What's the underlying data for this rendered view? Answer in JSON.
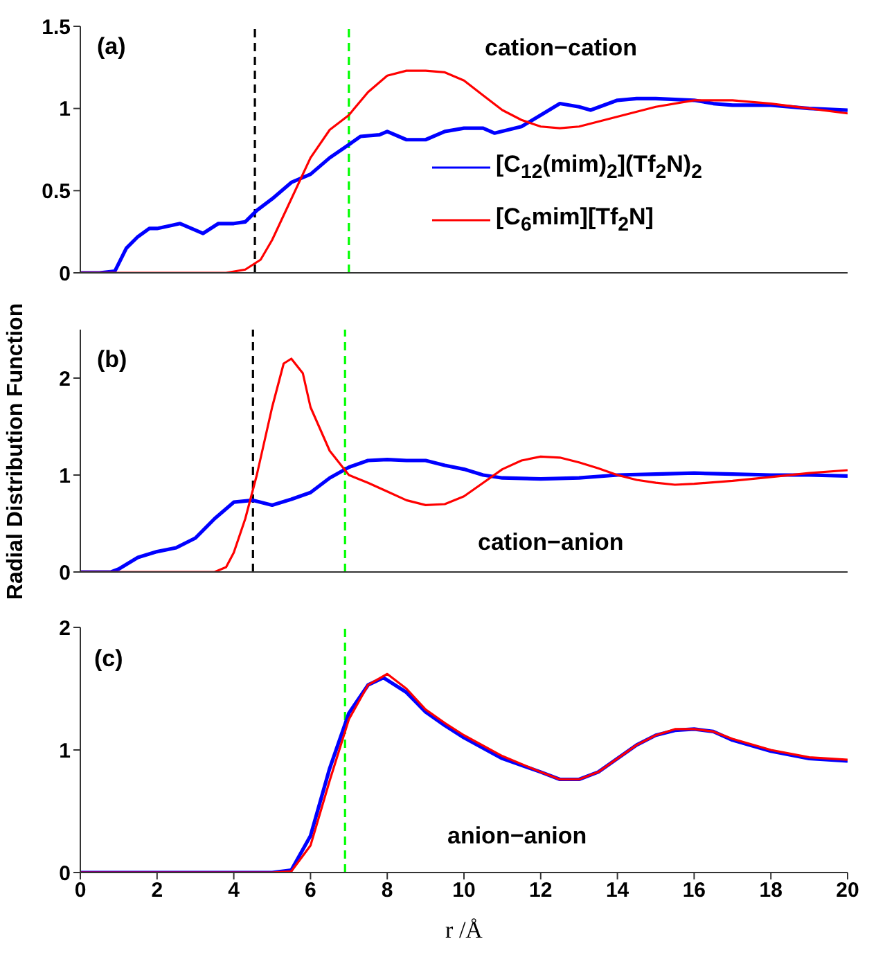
{
  "chart_data": [
    {
      "type": "line",
      "annotations": [
        "(a)",
        "cation−cation"
      ],
      "xlim": [
        0,
        20
      ],
      "xticks": [
        0,
        2,
        4,
        6,
        8,
        10,
        12,
        14,
        16,
        18,
        20
      ],
      "ylim": [
        0,
        1.5
      ],
      "yticks": [
        0,
        0.5,
        1,
        1.5
      ],
      "tick_labels": "y",
      "legend": "right",
      "grid": false,
      "ref_lines": [
        {
          "axis": "x",
          "value": 4.55,
          "color": "#000000",
          "line_style": "dashed"
        },
        {
          "axis": "x",
          "value": 7.0,
          "color": "#00ff00",
          "line_style": "dashed"
        }
      ],
      "series": [
        {
          "name": "[C$_{12}$(mim)$_{2}$](Tf$_{2}$N)$_{2}$",
          "color": "#0000ff",
          "x": [
            0,
            0.5,
            0.9,
            1.2,
            1.5,
            1.8,
            2,
            2.4,
            2.6,
            3,
            3.2,
            3.6,
            4,
            4.3,
            4.6,
            5,
            5.5,
            6,
            6.5,
            7,
            7.3,
            7.8,
            8,
            8.5,
            9,
            9.5,
            10,
            10.5,
            10.8,
            11.5,
            12,
            12.5,
            13,
            13.3,
            14,
            14.5,
            15,
            16,
            16.5,
            17,
            18,
            19,
            20
          ],
          "values": [
            0,
            0,
            0.01,
            0.15,
            0.22,
            0.27,
            0.27,
            0.29,
            0.3,
            0.26,
            0.24,
            0.3,
            0.3,
            0.31,
            0.38,
            0.45,
            0.55,
            0.6,
            0.7,
            0.78,
            0.83,
            0.84,
            0.86,
            0.81,
            0.81,
            0.86,
            0.88,
            0.88,
            0.85,
            0.89,
            0.96,
            1.03,
            1.01,
            0.99,
            1.05,
            1.06,
            1.06,
            1.05,
            1.03,
            1.02,
            1.02,
            1.0,
            0.99
          ]
        },
        {
          "name": "[C$_{6}$mim][Tf$_{2}$N]",
          "color": "#ff0000",
          "x": [
            0,
            3.8,
            4.3,
            4.7,
            5,
            5.5,
            6,
            6.5,
            7,
            7.5,
            8,
            8.5,
            9,
            9.5,
            10,
            10.5,
            11,
            11.5,
            12,
            12.5,
            13,
            14,
            15,
            16,
            17,
            18,
            19,
            20
          ],
          "values": [
            0,
            0,
            0.02,
            0.08,
            0.2,
            0.45,
            0.7,
            0.87,
            0.96,
            1.1,
            1.2,
            1.23,
            1.23,
            1.22,
            1.17,
            1.08,
            0.99,
            0.93,
            0.89,
            0.88,
            0.89,
            0.95,
            1.01,
            1.05,
            1.05,
            1.03,
            1.0,
            0.97
          ]
        }
      ]
    },
    {
      "type": "line",
      "ylabel": "Radial Distribution Function",
      "annotations": [
        "(b)",
        "cation−anion"
      ],
      "xlim": [
        0,
        20
      ],
      "xticks": [
        0,
        2,
        4,
        6,
        8,
        10,
        12,
        14,
        16,
        18,
        20
      ],
      "ylim": [
        0,
        2.5
      ],
      "yticks": [
        0,
        1,
        2
      ],
      "tick_labels": "y",
      "grid": false,
      "ref_lines": [
        {
          "axis": "x",
          "value": 4.5,
          "color": "#000000",
          "line_style": "dashed"
        },
        {
          "axis": "x",
          "value": 6.9,
          "color": "#00ff00",
          "line_style": "dashed"
        }
      ],
      "series": [
        {
          "color": "#0000ff",
          "x": [
            0,
            0.8,
            1,
            1.5,
            2,
            2.5,
            3,
            3.5,
            4,
            4.5,
            5,
            5.5,
            6,
            6.5,
            7,
            7.5,
            8,
            8.5,
            9,
            9.5,
            10,
            10.5,
            11,
            12,
            13,
            14,
            15,
            16,
            17,
            18,
            19,
            20
          ],
          "values": [
            0,
            0,
            0.03,
            0.15,
            0.21,
            0.25,
            0.35,
            0.55,
            0.72,
            0.74,
            0.69,
            0.75,
            0.82,
            0.97,
            1.08,
            1.15,
            1.16,
            1.15,
            1.15,
            1.1,
            1.06,
            1.0,
            0.97,
            0.96,
            0.97,
            1.0,
            1.01,
            1.02,
            1.01,
            1.0,
            1.0,
            0.99
          ]
        },
        {
          "color": "#ff0000",
          "x": [
            0,
            3.5,
            3.8,
            4,
            4.3,
            4.6,
            5,
            5.3,
            5.5,
            5.8,
            6,
            6.5,
            7,
            7.5,
            8,
            8.5,
            9,
            9.5,
            10,
            10.5,
            11,
            11.5,
            12,
            12.5,
            13,
            13.5,
            14,
            14.5,
            15,
            15.5,
            16,
            17,
            18,
            19,
            20
          ],
          "values": [
            0,
            0,
            0.05,
            0.2,
            0.55,
            1.0,
            1.7,
            2.15,
            2.2,
            2.05,
            1.7,
            1.25,
            1.0,
            0.92,
            0.83,
            0.74,
            0.69,
            0.7,
            0.78,
            0.92,
            1.06,
            1.15,
            1.19,
            1.18,
            1.13,
            1.07,
            1.0,
            0.95,
            0.92,
            0.9,
            0.91,
            0.94,
            0.98,
            1.02,
            1.05
          ]
        }
      ]
    },
    {
      "type": "line",
      "xlabel": "r /Å",
      "annotations": [
        "(c)",
        "anion−anion"
      ],
      "xlim": [
        0,
        20
      ],
      "xticks": [
        0,
        2,
        4,
        6,
        8,
        10,
        12,
        14,
        16,
        18,
        20
      ],
      "ylim": [
        0,
        2
      ],
      "yticks": [
        0,
        1,
        2
      ],
      "grid": false,
      "ref_lines": [
        {
          "axis": "x",
          "value": 6.9,
          "color": "#00ff00",
          "line_style": "dashed"
        }
      ],
      "series": [
        {
          "color": "#0000ff",
          "x": [
            0,
            5,
            5.5,
            6,
            6.5,
            7,
            7.5,
            7.9,
            8.5,
            9,
            9.5,
            10,
            11,
            12,
            12.5,
            13,
            13.5,
            14,
            14.5,
            15,
            15.5,
            16,
            16.5,
            17,
            18,
            19,
            20
          ],
          "values": [
            0,
            0,
            0.02,
            0.3,
            0.85,
            1.3,
            1.53,
            1.59,
            1.47,
            1.31,
            1.2,
            1.1,
            0.93,
            0.82,
            0.76,
            0.76,
            0.82,
            0.93,
            1.04,
            1.12,
            1.16,
            1.17,
            1.15,
            1.08,
            0.99,
            0.93,
            0.91
          ]
        },
        {
          "color": "#ff0000",
          "x": [
            0,
            5,
            5.5,
            6,
            6.5,
            7,
            7.5,
            8,
            8.5,
            9,
            9.5,
            10,
            11,
            12,
            12.5,
            13,
            13.5,
            14,
            14.5,
            15,
            15.5,
            16,
            16.5,
            17,
            18,
            19,
            20
          ],
          "values": [
            0,
            0,
            0.01,
            0.22,
            0.75,
            1.25,
            1.53,
            1.62,
            1.5,
            1.33,
            1.22,
            1.12,
            0.95,
            0.82,
            0.76,
            0.76,
            0.82,
            0.93,
            1.04,
            1.12,
            1.17,
            1.17,
            1.15,
            1.09,
            1.0,
            0.94,
            0.92
          ]
        }
      ]
    }
  ]
}
